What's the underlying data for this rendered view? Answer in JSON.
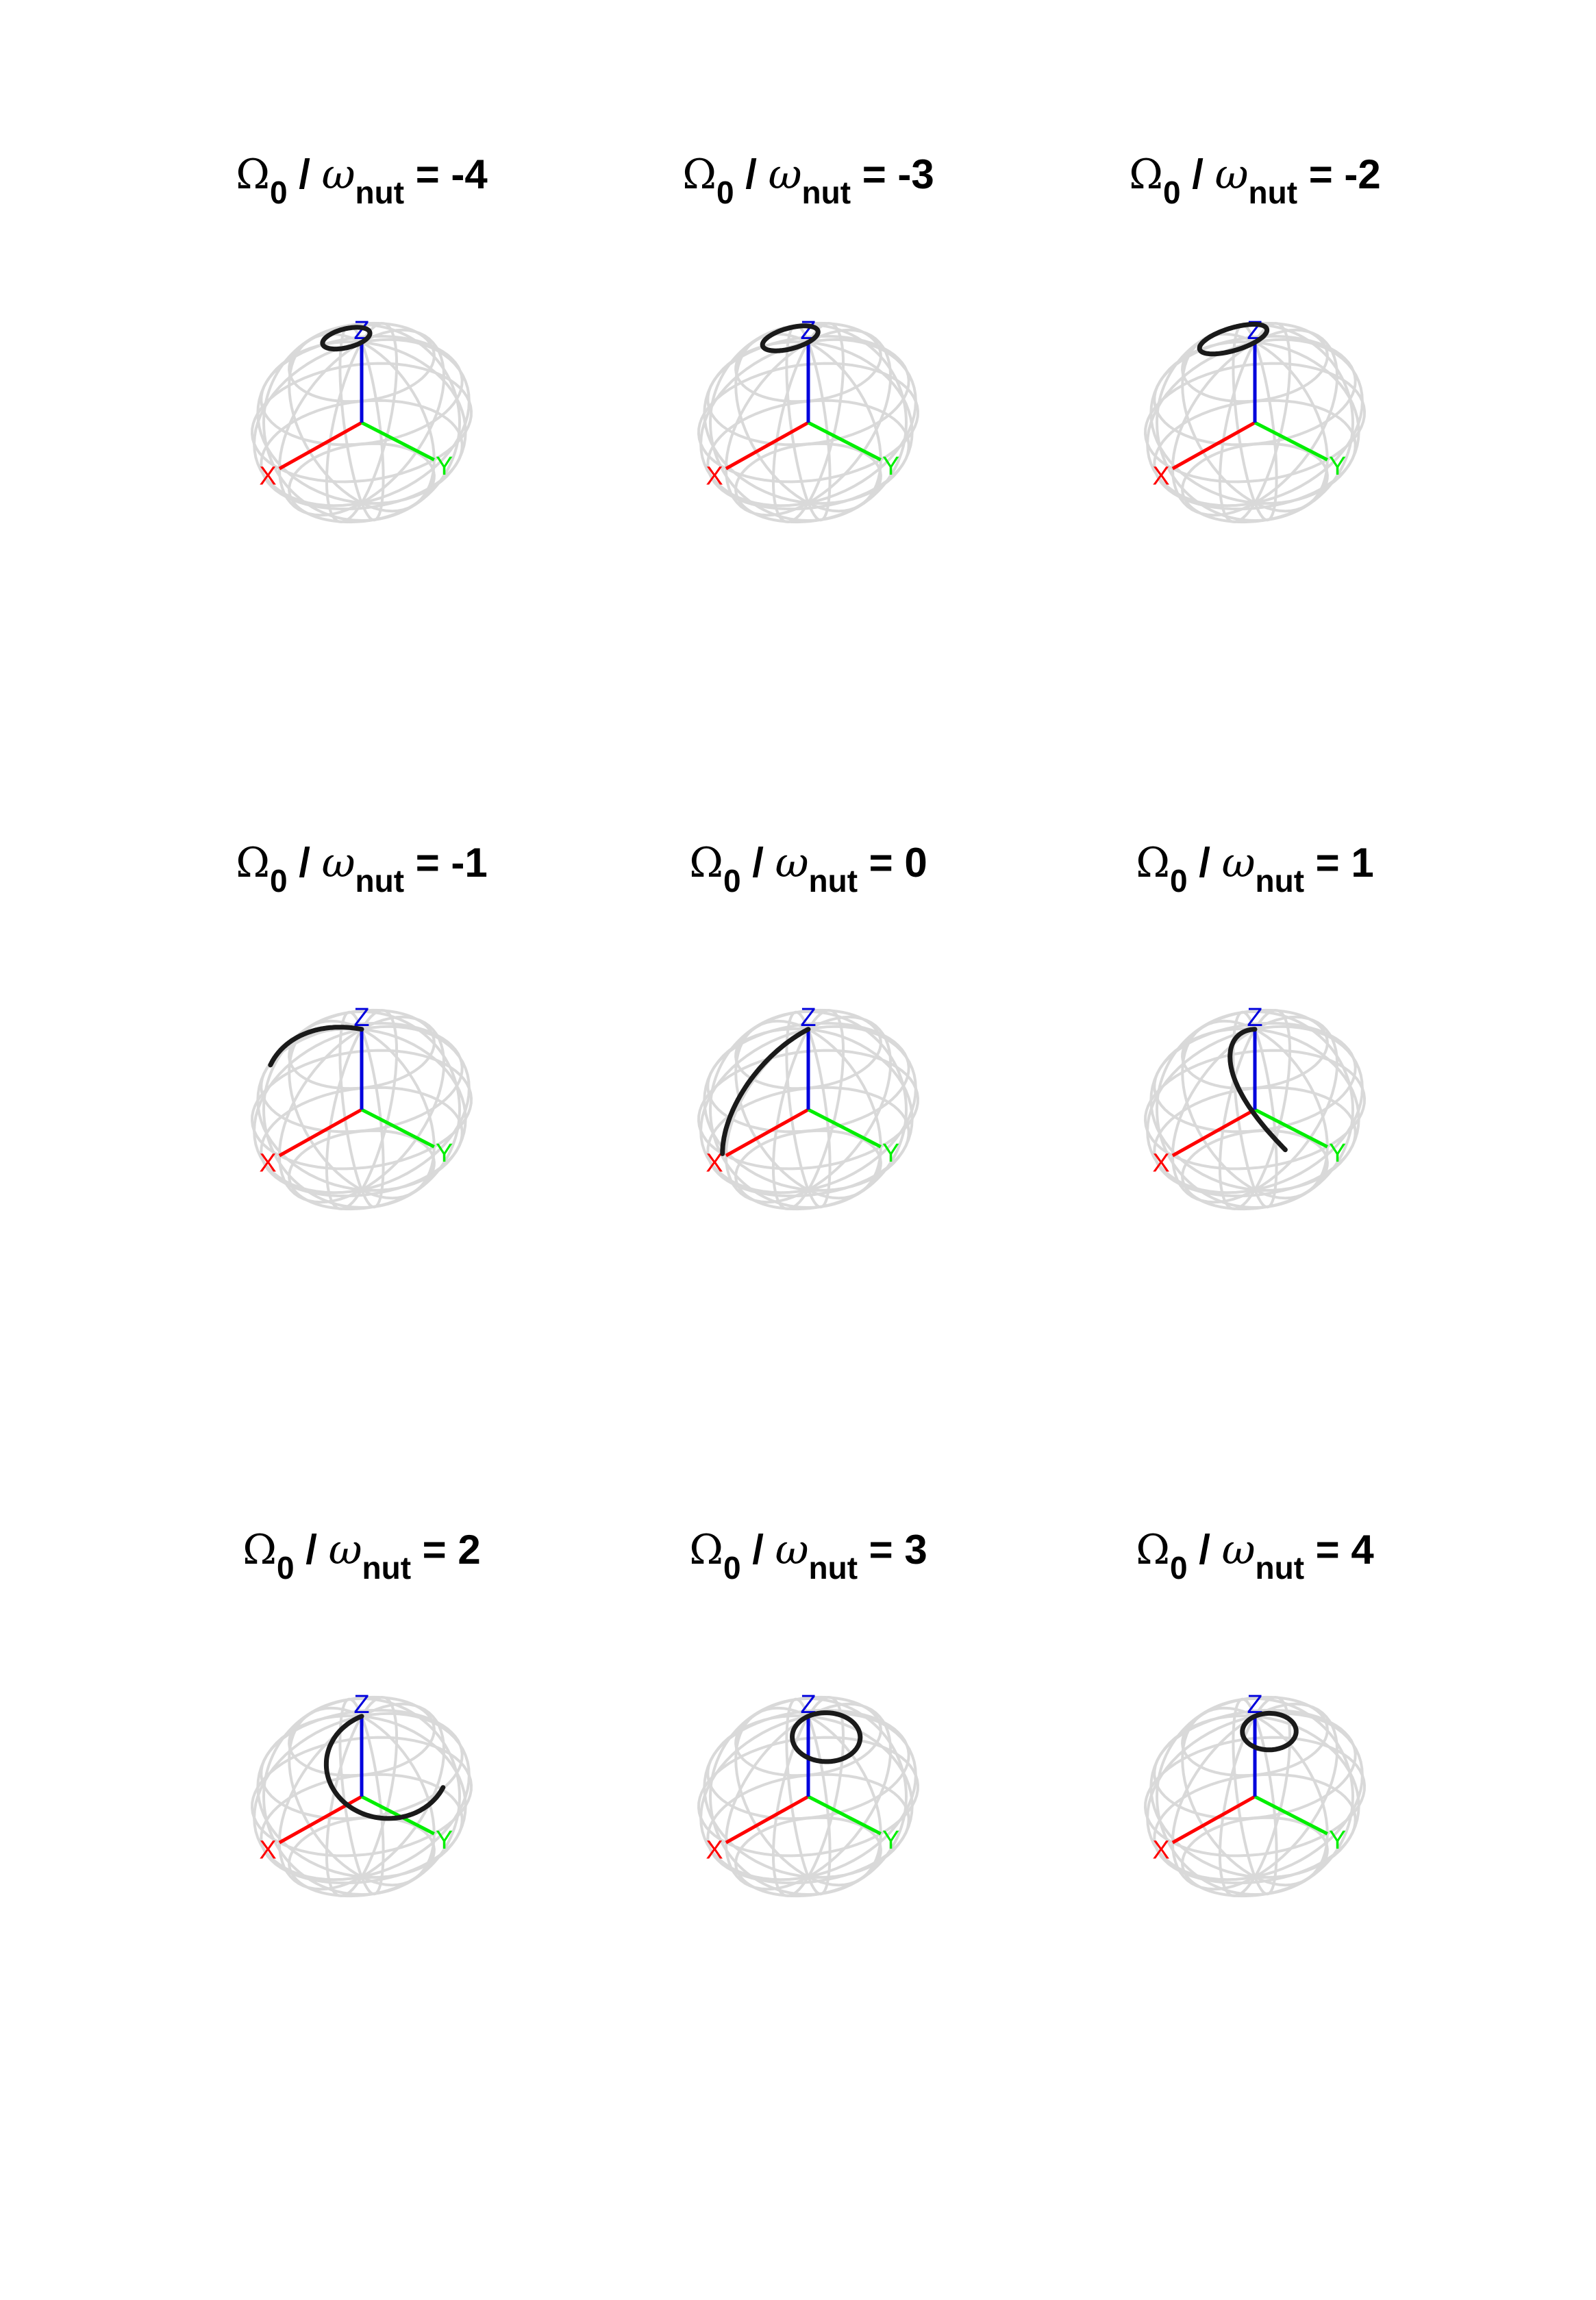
{
  "figure": {
    "title_symbol_top": "Ω",
    "title_sub_top": "0",
    "title_sep": " / ",
    "title_symbol_bottom": "ω",
    "title_sub_bottom": "nut",
    "title_eq": " = ",
    "axis_labels": {
      "x": "X",
      "y": "Y",
      "z": "Z"
    },
    "colors": {
      "x_axis": "#ff0000",
      "y_axis": "#00ee00",
      "z_axis": "#0000dd",
      "wire": "#d9d9d9",
      "trajectory": "#1a1a1a"
    }
  },
  "panels": [
    {
      "ratio": "-4",
      "trajectory": "small loop near north pole, tilted toward -Y"
    },
    {
      "ratio": "-3",
      "trajectory": "loop near north pole, tilted toward -Y"
    },
    {
      "ratio": "-2",
      "trajectory": "loop near north pole, tilted toward -Y"
    },
    {
      "ratio": "-1",
      "trajectory": "arc from +Z toward X/-Y side"
    },
    {
      "ratio": "0",
      "trajectory": "great arc from +Z to +X"
    },
    {
      "ratio": "1",
      "trajectory": "arc from +Z toward +X/+Y"
    },
    {
      "ratio": "2",
      "trajectory": "loop near north pole, tilted toward +Y"
    },
    {
      "ratio": "3",
      "trajectory": "loop near north pole, tilted toward +Y"
    },
    {
      "ratio": "4",
      "trajectory": "small loop near north pole, tilted toward +Y"
    }
  ]
}
